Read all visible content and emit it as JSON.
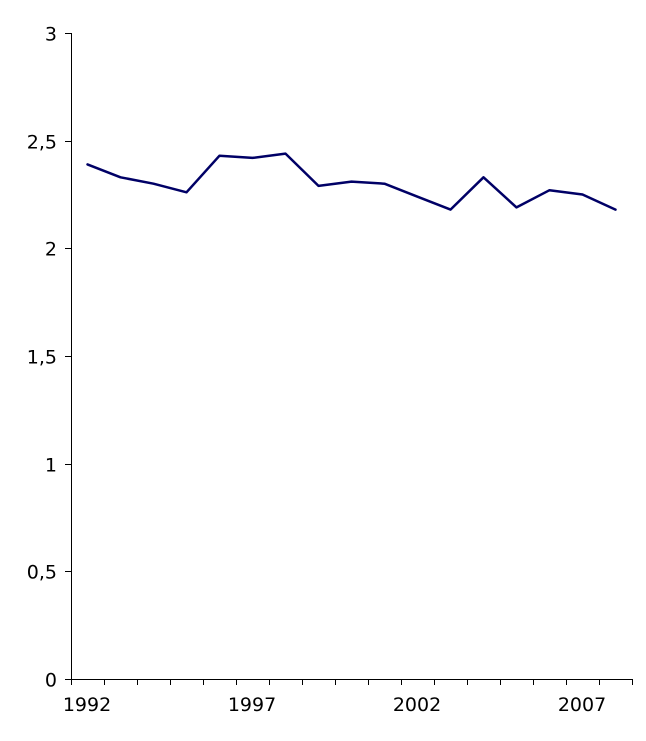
{
  "chart_data": {
    "type": "line",
    "title": "",
    "xlabel": "",
    "ylabel": "",
    "x": [
      1992,
      1993,
      1994,
      1995,
      1996,
      1997,
      1998,
      1999,
      2000,
      2001,
      2002,
      2003,
      2004,
      2005,
      2006,
      2007,
      2008
    ],
    "series": [
      {
        "color": "#000066",
        "values": [
          2.39,
          2.33,
          2.3,
          2.26,
          2.43,
          2.42,
          2.44,
          2.29,
          2.31,
          2.3,
          2.24,
          2.18,
          2.33,
          2.19,
          2.27,
          2.25,
          2.18
        ]
      }
    ],
    "ylim": [
      0,
      3
    ],
    "y_ticks": [
      {
        "value": 0,
        "label": "0"
      },
      {
        "value": 0.5,
        "label": "0,5"
      },
      {
        "value": 1,
        "label": "1"
      },
      {
        "value": 1.5,
        "label": "1,5"
      },
      {
        "value": 2,
        "label": "2"
      },
      {
        "value": 2.5,
        "label": "2,5"
      },
      {
        "value": 3,
        "label": "3"
      }
    ],
    "x_tick_labels": [
      {
        "value": 1992,
        "label": "1992"
      },
      {
        "value": 1997,
        "label": "1997"
      },
      {
        "value": 2002,
        "label": "2002"
      },
      {
        "value": 2007,
        "label": "2007"
      }
    ],
    "grid": false,
    "legend": "none"
  }
}
